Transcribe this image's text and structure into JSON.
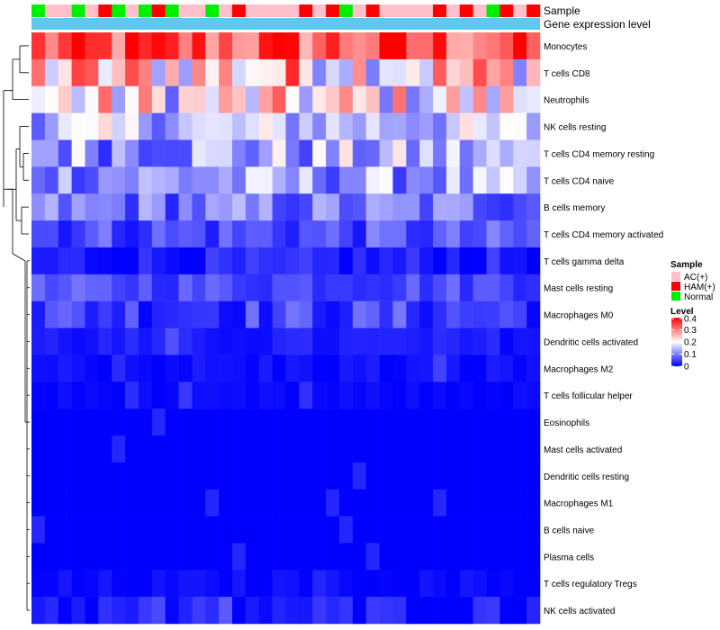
{
  "chart_data": {
    "type": "heatmap",
    "annotation_titles": {
      "sample": "Sample",
      "expression": "Gene expression level"
    },
    "legend": {
      "sample_title": "Sample",
      "sample_entries": [
        {
          "label": "AC(+)",
          "color": "#FFC0CB"
        },
        {
          "label": "HAM(+)",
          "color": "#FF0000"
        },
        {
          "label": "Normal",
          "color": "#00EE00"
        }
      ],
      "level_title": "Level",
      "level_ticks": [
        "0.4",
        "0.3",
        "0.2",
        "0.1",
        "0"
      ],
      "level_tick_values": [
        0.4,
        0.3,
        0.2,
        0.1,
        0
      ]
    },
    "color_scale": {
      "min": 0,
      "mid": 0.2,
      "max": 0.4,
      "low": "#0000FF",
      "midColor": "#FFFFFF",
      "high": "#FF0000"
    },
    "expression_bar_color": "#5FC8F0",
    "samples": [
      "Normal",
      "AC(+)",
      "AC(+)",
      "Normal",
      "AC(+)",
      "HAM(+)",
      "Normal",
      "AC(+)",
      "Normal",
      "HAM(+)",
      "Normal",
      "AC(+)",
      "AC(+)",
      "Normal",
      "AC(+)",
      "HAM(+)",
      "AC(+)",
      "AC(+)",
      "AC(+)",
      "AC(+)",
      "HAM(+)",
      "AC(+)",
      "HAM(+)",
      "Normal",
      "AC(+)",
      "HAM(+)",
      "AC(+)",
      "AC(+)",
      "AC(+)",
      "AC(+)",
      "HAM(+)",
      "AC(+)",
      "HAM(+)",
      "AC(+)",
      "Normal",
      "HAM(+)",
      "AC(+)",
      "HAM(+)"
    ],
    "rows": [
      "Monocytes",
      "T cells CD8",
      "Neutrophils",
      "NK cells resting",
      "T cells CD4 memory resting",
      "T cells CD4 naive",
      "B cells memory",
      "T cells CD4 memory activated",
      "T cells gamma delta",
      "Mast cells resting",
      "Macrophages M0",
      "Dendritic cells activated",
      "Macrophages M2",
      "T cells follicular helper",
      "Eosinophils",
      "Mast cells activated",
      "Dendritic cells resting",
      "Macrophages M1",
      "B cells naive",
      "Plasma cells",
      "T cells regulatory  Tregs",
      "NK cells activated"
    ],
    "row_means": [
      0.33,
      0.24,
      0.2,
      0.15,
      0.13,
      0.12,
      0.09,
      0.06,
      0.02,
      0.06,
      0.05,
      0.02,
      0.01,
      0.005,
      0.0,
      0.0,
      0.0,
      0.0,
      0.0,
      0.0,
      0.005,
      0.02
    ],
    "value_range": [
      0,
      0.4
    ]
  }
}
